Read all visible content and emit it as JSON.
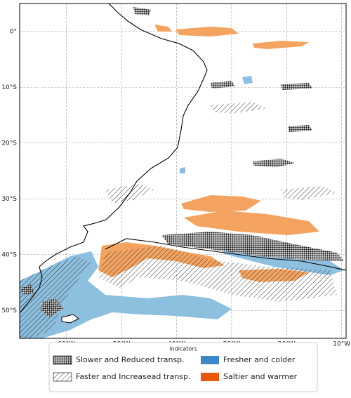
{
  "map": {
    "xlim": [
      -68.5,
      -9.2
    ],
    "ylim": [
      -55,
      5
    ],
    "xticks": [
      {
        "value": -60,
        "label": "60°W"
      },
      {
        "value": -50,
        "label": "50°W"
      },
      {
        "value": -40,
        "label": "40°W"
      },
      {
        "value": -30,
        "label": "30°W"
      },
      {
        "value": -20,
        "label": "20°W"
      },
      {
        "value": -10,
        "label": "10°W"
      }
    ],
    "yticks": [
      {
        "value": 0,
        "label": "0°"
      },
      {
        "value": -10,
        "label": "10°S"
      },
      {
        "value": -20,
        "label": "20°S"
      },
      {
        "value": -30,
        "label": "30°S"
      },
      {
        "value": -40,
        "label": "40°S"
      },
      {
        "value": -50,
        "label": "50°S"
      }
    ],
    "grid": true,
    "legend": {
      "title": "Indicators",
      "entries": [
        {
          "label": "Slower and Reduced transp."
        },
        {
          "label": "Faster and Increasead transp."
        },
        {
          "label": "Fresher and colder",
          "color": "#3a88c8"
        },
        {
          "label": "Saltier and warmer",
          "color": "#e8590c"
        }
      ]
    }
  }
}
